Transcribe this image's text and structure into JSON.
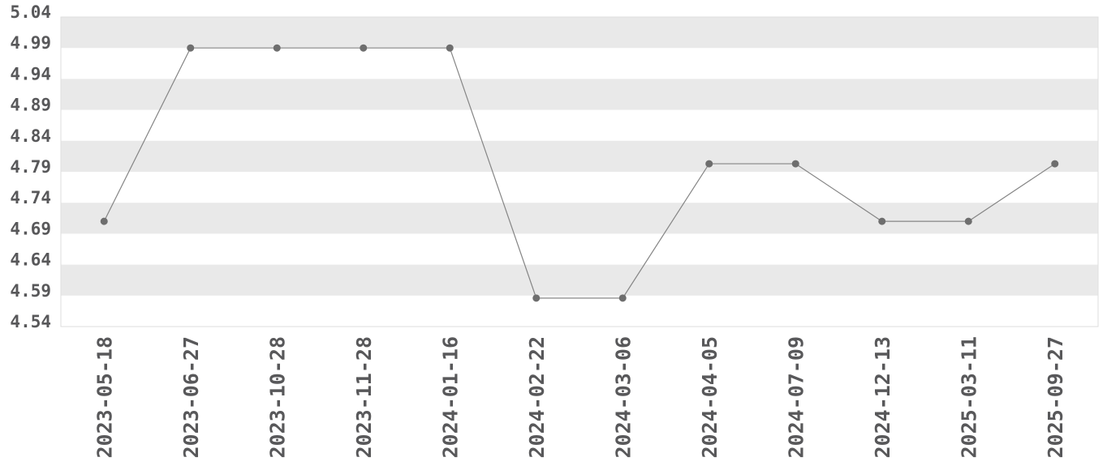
{
  "chart_data": {
    "type": "line",
    "title": "",
    "xlabel": "",
    "ylabel": "",
    "x": [
      "2023-05-18",
      "2023-06-27",
      "2023-10-28",
      "2023-11-28",
      "2024-01-16",
      "2024-02-22",
      "2024-03-06",
      "2024-04-05",
      "2024-07-09",
      "2024-12-13",
      "2025-03-11",
      "2025-09-27"
    ],
    "values": [
      4.71,
      4.99,
      4.99,
      4.99,
      4.99,
      4.586,
      4.586,
      4.803,
      4.803,
      4.71,
      4.71,
      4.803
    ],
    "ylim": [
      4.54,
      5.04
    ],
    "yticks": [
      5.04,
      4.99,
      4.94,
      4.89,
      4.84,
      4.79,
      4.74,
      4.69,
      4.64,
      4.59,
      4.54
    ],
    "ytick_labels": [
      "5.04",
      "4.99",
      "4.94",
      "4.89",
      "4.84",
      "4.79",
      "4.74",
      "4.69",
      "4.64",
      "4.59",
      "4.54"
    ],
    "grid": "alternating-horizontal-bands",
    "legend": "none",
    "marker": "circle",
    "colors": {
      "background": "#ffffff",
      "band": "#e9e9e9",
      "plot_border": "#dedede",
      "line": "#858585",
      "marker": "#6e6e6e",
      "tick_text": "#58585a"
    }
  }
}
